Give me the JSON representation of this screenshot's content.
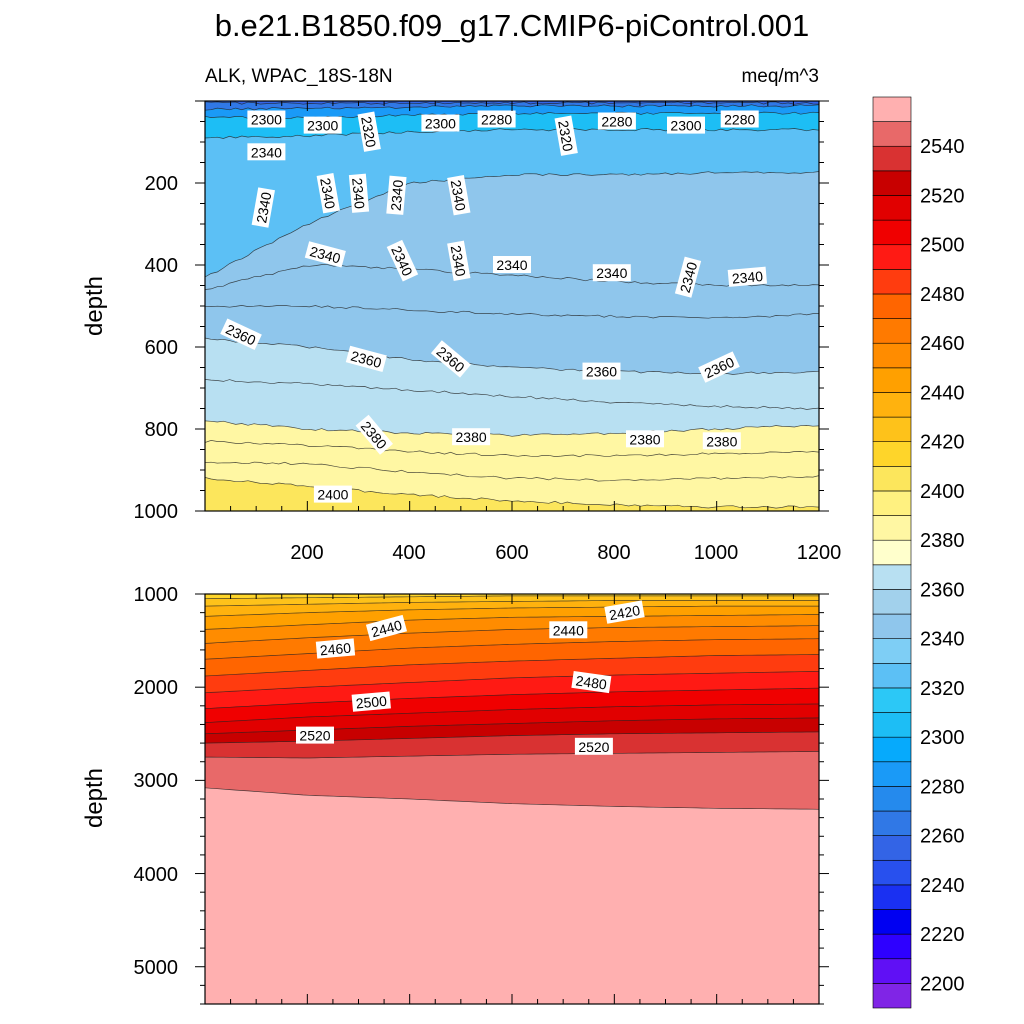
{
  "chart_data": {
    "type": "contour",
    "title": "b.e21.B1850.f09_g17.CMIP6-piControl.001",
    "variable_label": "ALK, WPAC_18S-18N",
    "units_label": "meq/m^3",
    "x_tick_labels": [
      "200",
      "400",
      "600",
      "800",
      "1000",
      "1200"
    ],
    "panels": [
      {
        "name": "upper",
        "ylabel": "depth",
        "xlim": [
          0,
          1200
        ],
        "ylim": [
          0,
          1000
        ],
        "y_tick_labels": [
          "200",
          "400",
          "600",
          "800",
          "1000"
        ],
        "isolines": [
          {
            "value": 2260,
            "depth": [
              5,
              5,
              5,
              5,
              5,
              5,
              5
            ]
          },
          {
            "value": 2280,
            "depth": [
              20,
              18,
              15,
              12,
              12,
              12,
              12
            ]
          },
          {
            "value": 2300,
            "depth": [
              40,
              40,
              35,
              30,
              30,
              30,
              30
            ]
          },
          {
            "value": 2320,
            "depth": [
              90,
              85,
              75,
              70,
              70,
              70,
              70
            ]
          },
          {
            "value": 2340,
            "depth": [
              430,
              300,
              200,
              180,
              180,
              175,
              175
            ]
          },
          {
            "value": 2340,
            "depth": [
              460,
              400,
              410,
              425,
              440,
              450,
              450
            ]
          },
          {
            "value": 2340,
            "depth": [
              500,
              500,
              510,
              520,
              525,
              530,
              520
            ]
          },
          {
            "value": 2360,
            "depth": [
              580,
              600,
              630,
              650,
              660,
              665,
              660
            ]
          },
          {
            "value": 2360,
            "depth": [
              680,
              690,
              705,
              720,
              735,
              745,
              750
            ]
          },
          {
            "value": 2380,
            "depth": [
              780,
              800,
              810,
              815,
              810,
              800,
              790
            ]
          },
          {
            "value": 2380,
            "depth": [
              830,
              840,
              855,
              865,
              865,
              860,
              855
            ]
          },
          {
            "value": 2380,
            "depth": [
              880,
              885,
              905,
              920,
              925,
              920,
              915
            ]
          },
          {
            "value": 2400,
            "depth": [
              920,
              940,
              960,
              975,
              985,
              990,
              990
            ]
          }
        ],
        "contour_labels": [
          {
            "text": "2300",
            "x": 120,
            "y": 45,
            "angle": 0
          },
          {
            "text": "2300",
            "x": 230,
            "y": 60,
            "angle": 0
          },
          {
            "text": "2320",
            "x": 320,
            "y": 75,
            "angle": 80
          },
          {
            "text": "2300",
            "x": 460,
            "y": 55,
            "angle": 0
          },
          {
            "text": "2280",
            "x": 570,
            "y": 45,
            "angle": 0
          },
          {
            "text": "2320",
            "x": 705,
            "y": 85,
            "angle": 80
          },
          {
            "text": "2280",
            "x": 805,
            "y": 50,
            "angle": 0
          },
          {
            "text": "2300",
            "x": 940,
            "y": 60,
            "angle": 0
          },
          {
            "text": "2280",
            "x": 1045,
            "y": 45,
            "angle": 0
          },
          {
            "text": "2340",
            "x": 120,
            "y": 125,
            "angle": 0
          },
          {
            "text": "2340",
            "x": 115,
            "y": 260,
            "angle": -80
          },
          {
            "text": "2340",
            "x": 240,
            "y": 225,
            "angle": 80
          },
          {
            "text": "2340",
            "x": 300,
            "y": 225,
            "angle": 85
          },
          {
            "text": "2340",
            "x": 375,
            "y": 230,
            "angle": -85
          },
          {
            "text": "2340",
            "x": 495,
            "y": 230,
            "angle": 80
          },
          {
            "text": "2340",
            "x": 235,
            "y": 375,
            "angle": 15
          },
          {
            "text": "2340",
            "x": 385,
            "y": 390,
            "angle": 65
          },
          {
            "text": "2340",
            "x": 495,
            "y": 390,
            "angle": 80
          },
          {
            "text": "2340",
            "x": 600,
            "y": 400,
            "angle": 0
          },
          {
            "text": "2340",
            "x": 795,
            "y": 420,
            "angle": 0
          },
          {
            "text": "2340",
            "x": 945,
            "y": 430,
            "angle": -75
          },
          {
            "text": "2340",
            "x": 1060,
            "y": 430,
            "angle": -5
          },
          {
            "text": "2360",
            "x": 70,
            "y": 570,
            "angle": 25
          },
          {
            "text": "2360",
            "x": 315,
            "y": 630,
            "angle": 15
          },
          {
            "text": "2360",
            "x": 480,
            "y": 630,
            "angle": 40
          },
          {
            "text": "2360",
            "x": 775,
            "y": 660,
            "angle": 0
          },
          {
            "text": "2360",
            "x": 1005,
            "y": 650,
            "angle": -25
          },
          {
            "text": "2380",
            "x": 330,
            "y": 815,
            "angle": 50
          },
          {
            "text": "2380",
            "x": 520,
            "y": 820,
            "angle": 0
          },
          {
            "text": "2380",
            "x": 860,
            "y": 825,
            "angle": 0
          },
          {
            "text": "2380",
            "x": 1010,
            "y": 830,
            "angle": 0
          },
          {
            "text": "2400",
            "x": 250,
            "y": 960,
            "angle": 0
          }
        ]
      },
      {
        "name": "lower",
        "ylabel": "depth",
        "xlim": [
          0,
          1200
        ],
        "ylim": [
          1000,
          5400
        ],
        "y_tick_labels": [
          "1000",
          "2000",
          "3000",
          "4000",
          "5000"
        ],
        "isolines": [
          {
            "value": 2420,
            "depth": [
              1050,
              1040,
              1030,
              1020,
              1020,
              1020,
              1020
            ]
          },
          {
            "value": 2430,
            "depth": [
              1130,
              1110,
              1090,
              1080,
              1070,
              1070,
              1070
            ]
          },
          {
            "value": 2440,
            "depth": [
              1240,
              1200,
              1170,
              1150,
              1140,
              1130,
              1130
            ]
          },
          {
            "value": 2450,
            "depth": [
              1380,
              1330,
              1280,
              1250,
              1240,
              1230,
              1220
            ]
          },
          {
            "value": 2460,
            "depth": [
              1530,
              1470,
              1420,
              1380,
              1360,
              1350,
              1340
            ]
          },
          {
            "value": 2470,
            "depth": [
              1700,
              1640,
              1580,
              1540,
              1510,
              1490,
              1480
            ]
          },
          {
            "value": 2480,
            "depth": [
              1880,
              1820,
              1760,
              1720,
              1690,
              1660,
              1650
            ]
          },
          {
            "value": 2490,
            "depth": [
              2060,
              2000,
              1950,
              1900,
              1870,
              1850,
              1830
            ]
          },
          {
            "value": 2500,
            "depth": [
              2230,
              2170,
              2120,
              2080,
              2050,
              2030,
              2010
            ]
          },
          {
            "value": 2510,
            "depth": [
              2380,
              2320,
              2280,
              2240,
              2210,
              2190,
              2180
            ]
          },
          {
            "value": 2520,
            "depth": [
              2500,
              2460,
              2420,
              2390,
              2360,
              2340,
              2330
            ]
          },
          {
            "value": 2530,
            "depth": [
              2600,
              2580,
              2550,
              2520,
              2500,
              2490,
              2480
            ]
          },
          {
            "value": 2540,
            "depth": [
              2750,
              2760,
              2740,
              2720,
              2710,
              2700,
              2690
            ]
          },
          {
            "value": 2550,
            "depth": [
              3080,
              3160,
              3200,
              3250,
              3280,
              3300,
              3310
            ]
          }
        ],
        "contour_labels": [
          {
            "text": "2420",
            "x": 820,
            "y": 1200,
            "angle": -10
          },
          {
            "text": "2440",
            "x": 355,
            "y": 1370,
            "angle": -15
          },
          {
            "text": "2440",
            "x": 710,
            "y": 1390,
            "angle": 0
          },
          {
            "text": "2460",
            "x": 255,
            "y": 1590,
            "angle": -5
          },
          {
            "text": "2480",
            "x": 755,
            "y": 1950,
            "angle": 8
          },
          {
            "text": "2500",
            "x": 325,
            "y": 2160,
            "angle": -5
          },
          {
            "text": "2520",
            "x": 215,
            "y": 2520,
            "angle": 0
          },
          {
            "text": "2520",
            "x": 760,
            "y": 2640,
            "angle": 0
          }
        ]
      }
    ],
    "colorbar": {
      "levels": [
        2200,
        2210,
        2220,
        2230,
        2240,
        2250,
        2260,
        2270,
        2280,
        2290,
        2300,
        2310,
        2320,
        2330,
        2340,
        2350,
        2360,
        2370,
        2380,
        2390,
        2400,
        2410,
        2420,
        2430,
        2440,
        2450,
        2460,
        2470,
        2480,
        2490,
        2500,
        2510,
        2520,
        2530,
        2540,
        2550
      ],
      "tick_labels": [
        "2200",
        "2220",
        "2240",
        "2260",
        "2280",
        "2300",
        "2320",
        "2340",
        "2360",
        "2380",
        "2400",
        "2420",
        "2440",
        "2460",
        "2480",
        "2500",
        "2520",
        "2540"
      ],
      "colors": [
        "#8025E6",
        "#6010F5",
        "#2E00FF",
        "#0000F2",
        "#1A30F2",
        "#2850EE",
        "#3364E6",
        "#3078E6",
        "#258AED",
        "#1A9AF7",
        "#06AAFC",
        "#1DBEF5",
        "#2CC8F6",
        "#5CC0F5",
        "#7ECEF5",
        "#8FC6EC",
        "#A2D1EC",
        "#B8E0F2",
        "#FFFFCC",
        "#FFF7A3",
        "#FFF180",
        "#FCE65C",
        "#FED52A",
        "#FEC21A",
        "#FFB20E",
        "#FFA000",
        "#FF8C00",
        "#FF7A00",
        "#FF6500",
        "#FF3C0F",
        "#FF1A14",
        "#F00000",
        "#E10000",
        "#C80000",
        "#D93232",
        "#E86969",
        "#FFB0B0"
      ]
    }
  }
}
